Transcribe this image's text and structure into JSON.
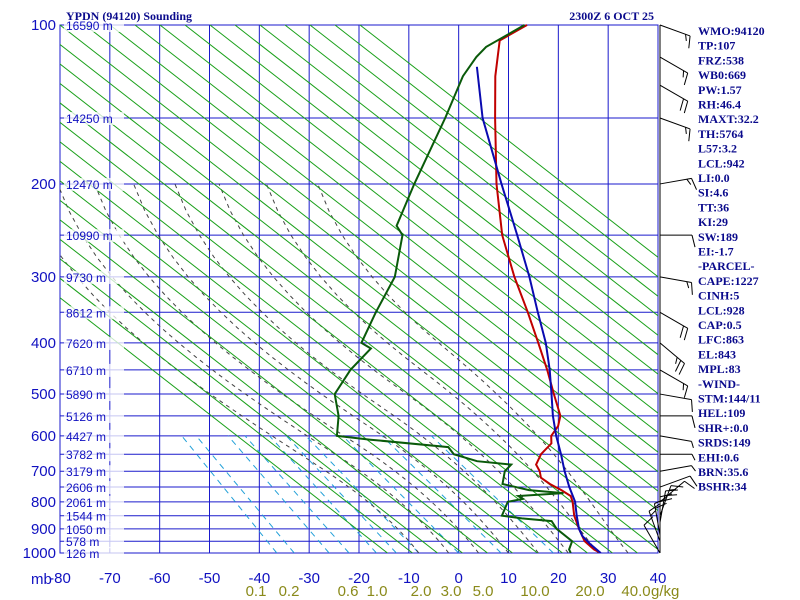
{
  "header": {
    "title": "YPDN (94120) Sounding",
    "time": "2300Z  6 OCT 25"
  },
  "indices": [
    "WMO:94120",
    "TP:107",
    "FRZ:538",
    "WB0:669",
    "PW:1.57",
    "RH:46.4",
    "MAXT:32.2",
    "TH:5764",
    "L57:3.2",
    "LCL:942",
    "LI:0.0",
    "SI:4.6",
    "TT:36",
    "KI:29",
    "SW:189",
    "EI:-1.7",
    "-PARCEL-",
    "CAPE:1227",
    "CINH:5",
    "LCL:928",
    "CAP:0.5",
    "LFC:863",
    "EL:843",
    "MPL:83",
    "-WIND-",
    "STM:144/11",
    "HEL:109",
    "SHR+:0.0",
    "SRDS:149",
    "EHI:0.6",
    "BRN:35.6",
    "BSHR:34"
  ],
  "colors": {
    "temperature": "#c00000",
    "dewpoint": "#0a5a0a",
    "parcel": "#0a0ab0",
    "grid": "#1a1acc",
    "dry_adiabat": "#1aa01a",
    "moist_adiabat": "#444444",
    "mixing_ratio": "#22a0d8",
    "mixing_ratio_label": "#8a8a1a"
  },
  "chart_data": {
    "type": "line",
    "title": "YPDN (94120) Sounding",
    "xlabel": "",
    "ylabel": "mb",
    "y_axis_label": "mb",
    "y_scale": "log",
    "xlim": [
      -80,
      40
    ],
    "ylim": [
      1000,
      100
    ],
    "x_ticks": [
      -80,
      -70,
      -60,
      -50,
      -40,
      -30,
      -20,
      -10,
      0,
      10,
      20,
      30,
      40
    ],
    "x_tick_labels": [
      "-80",
      "-70",
      "-60",
      "-50",
      "-40",
      "-30",
      "-20",
      "-10",
      "0",
      "10",
      "20",
      "30",
      "40"
    ],
    "pressure_ticks": [
      "100",
      "200",
      "300",
      "400",
      "500",
      "600",
      "700",
      "800",
      "900",
      "1000"
    ],
    "height_labels": [
      {
        "p": 100,
        "label": "16590 m"
      },
      {
        "p": 150,
        "label": "14250 m"
      },
      {
        "p": 200,
        "label": "12470 m"
      },
      {
        "p": 250,
        "label": "10990 m"
      },
      {
        "p": 300,
        "label": "9730 m"
      },
      {
        "p": 350,
        "label": "8612 m"
      },
      {
        "p": 400,
        "label": "7620 m"
      },
      {
        "p": 450,
        "label": "6710 m"
      },
      {
        "p": 500,
        "label": "5890 m"
      },
      {
        "p": 550,
        "label": "5126 m"
      },
      {
        "p": 600,
        "label": "4427 m"
      },
      {
        "p": 650,
        "label": "3782 m"
      },
      {
        "p": 700,
        "label": "3179 m"
      },
      {
        "p": 750,
        "label": "2606 m"
      },
      {
        "p": 800,
        "label": "2061 m"
      },
      {
        "p": 850,
        "label": "1544 m"
      },
      {
        "p": 900,
        "label": "1050 m"
      },
      {
        "p": 950,
        "label": "578 m"
      },
      {
        "p": 1000,
        "label": "126 m"
      }
    ],
    "mixing_ratio_labels": [
      "0.1",
      "0.2",
      "0.6",
      "1.0",
      "2.0",
      "3.0",
      "5.0",
      "10.0",
      "20.0",
      "40.0"
    ],
    "mixing_ratio_unit": "g/kg",
    "series": [
      {
        "name": "temperature",
        "points": [
          [
            1000,
            28.5
          ],
          [
            985,
            26.5
          ],
          [
            950,
            23.0
          ],
          [
            900,
            19.5
          ],
          [
            850,
            16.0
          ],
          [
            800,
            13.0
          ],
          [
            780,
            11.5
          ],
          [
            760,
            8.5
          ],
          [
            740,
            5.0
          ],
          [
            720,
            2.0
          ],
          [
            700,
            0.5
          ],
          [
            680,
            -1.5
          ],
          [
            650,
            -2.5
          ],
          [
            620,
            -2.5
          ],
          [
            600,
            -4.0
          ],
          [
            575,
            -4.5
          ],
          [
            550,
            -6.0
          ],
          [
            500,
            -11.5
          ],
          [
            450,
            -17.5
          ],
          [
            400,
            -24.5
          ],
          [
            350,
            -32.5
          ],
          [
            300,
            -42.0
          ],
          [
            250,
            -52.5
          ],
          [
            200,
            -63.5
          ],
          [
            150,
            -76.5
          ],
          [
            125,
            -84.5
          ],
          [
            107,
            -90.5
          ],
          [
            100,
            -88.0
          ]
        ]
      },
      {
        "name": "dewpoint",
        "points": [
          [
            1000,
            22.5
          ],
          [
            985,
            21.5
          ],
          [
            950,
            20.5
          ],
          [
            900,
            15.0
          ],
          [
            870,
            12.5
          ],
          [
            860,
            6.0
          ],
          [
            850,
            1.5
          ],
          [
            800,
            0.0
          ],
          [
            790,
            2.5
          ],
          [
            780,
            1.0
          ],
          [
            770,
            9.5
          ],
          [
            760,
            2.0
          ],
          [
            740,
            -4.5
          ],
          [
            700,
            -6.5
          ],
          [
            680,
            -6.5
          ],
          [
            670,
            -14.0
          ],
          [
            650,
            -20.0
          ],
          [
            630,
            -22.5
          ],
          [
            610,
            -39.5
          ],
          [
            600,
            -47.0
          ],
          [
            550,
            -50.5
          ],
          [
            500,
            -55.5
          ],
          [
            450,
            -57.0
          ],
          [
            410,
            -57.0
          ],
          [
            400,
            -60.0
          ],
          [
            350,
            -63.0
          ],
          [
            300,
            -66.0
          ],
          [
            250,
            -72.5
          ],
          [
            240,
            -75.5
          ],
          [
            200,
            -80.0
          ],
          [
            150,
            -86.5
          ],
          [
            125,
            -91.0
          ],
          [
            115,
            -92.0
          ],
          [
            110,
            -92.0
          ],
          [
            100,
            -88.5
          ]
        ]
      },
      {
        "name": "parcel",
        "points": [
          [
            1000,
            28.5
          ],
          [
            960,
            24.5
          ],
          [
            928,
            21.5
          ],
          [
            900,
            19.5
          ],
          [
            850,
            16.5
          ],
          [
            800,
            13.5
          ],
          [
            750,
            9.5
          ],
          [
            700,
            5.5
          ],
          [
            650,
            1.5
          ],
          [
            600,
            -3.0
          ],
          [
            550,
            -7.5
          ],
          [
            500,
            -12.0
          ],
          [
            450,
            -17.0
          ],
          [
            400,
            -23.0
          ],
          [
            350,
            -30.5
          ],
          [
            300,
            -39.0
          ],
          [
            250,
            -49.5
          ],
          [
            200,
            -62.5
          ],
          [
            150,
            -79.0
          ],
          [
            120,
            -90.0
          ]
        ]
      }
    ],
    "winds": [
      {
        "p": 1000,
        "dir": 150,
        "speed": 10
      },
      {
        "p": 950,
        "dir": 160,
        "speed": 15
      },
      {
        "p": 925,
        "dir": 170,
        "speed": 20
      },
      {
        "p": 900,
        "dir": 180,
        "speed": 20
      },
      {
        "p": 875,
        "dir": 190,
        "speed": 20
      },
      {
        "p": 850,
        "dir": 200,
        "speed": 15
      },
      {
        "p": 800,
        "dir": 230,
        "speed": 10
      },
      {
        "p": 750,
        "dir": 250,
        "speed": 10
      },
      {
        "p": 700,
        "dir": 260,
        "speed": 5
      },
      {
        "p": 650,
        "dir": 270,
        "speed": 5
      },
      {
        "p": 600,
        "dir": 280,
        "speed": 5
      },
      {
        "p": 550,
        "dir": 270,
        "speed": 10
      },
      {
        "p": 500,
        "dir": 280,
        "speed": 10
      },
      {
        "p": 450,
        "dir": 300,
        "speed": 15
      },
      {
        "p": 400,
        "dir": 310,
        "speed": 25
      },
      {
        "p": 350,
        "dir": 300,
        "speed": 20
      },
      {
        "p": 300,
        "dir": 280,
        "speed": 15
      },
      {
        "p": 250,
        "dir": 270,
        "speed": 10
      },
      {
        "p": 200,
        "dir": 260,
        "speed": 15
      },
      {
        "p": 150,
        "dir": 290,
        "speed": 15
      },
      {
        "p": 130,
        "dir": 300,
        "speed": 20
      },
      {
        "p": 115,
        "dir": 300,
        "speed": 15
      },
      {
        "p": 100,
        "dir": 290,
        "speed": 15
      }
    ]
  }
}
